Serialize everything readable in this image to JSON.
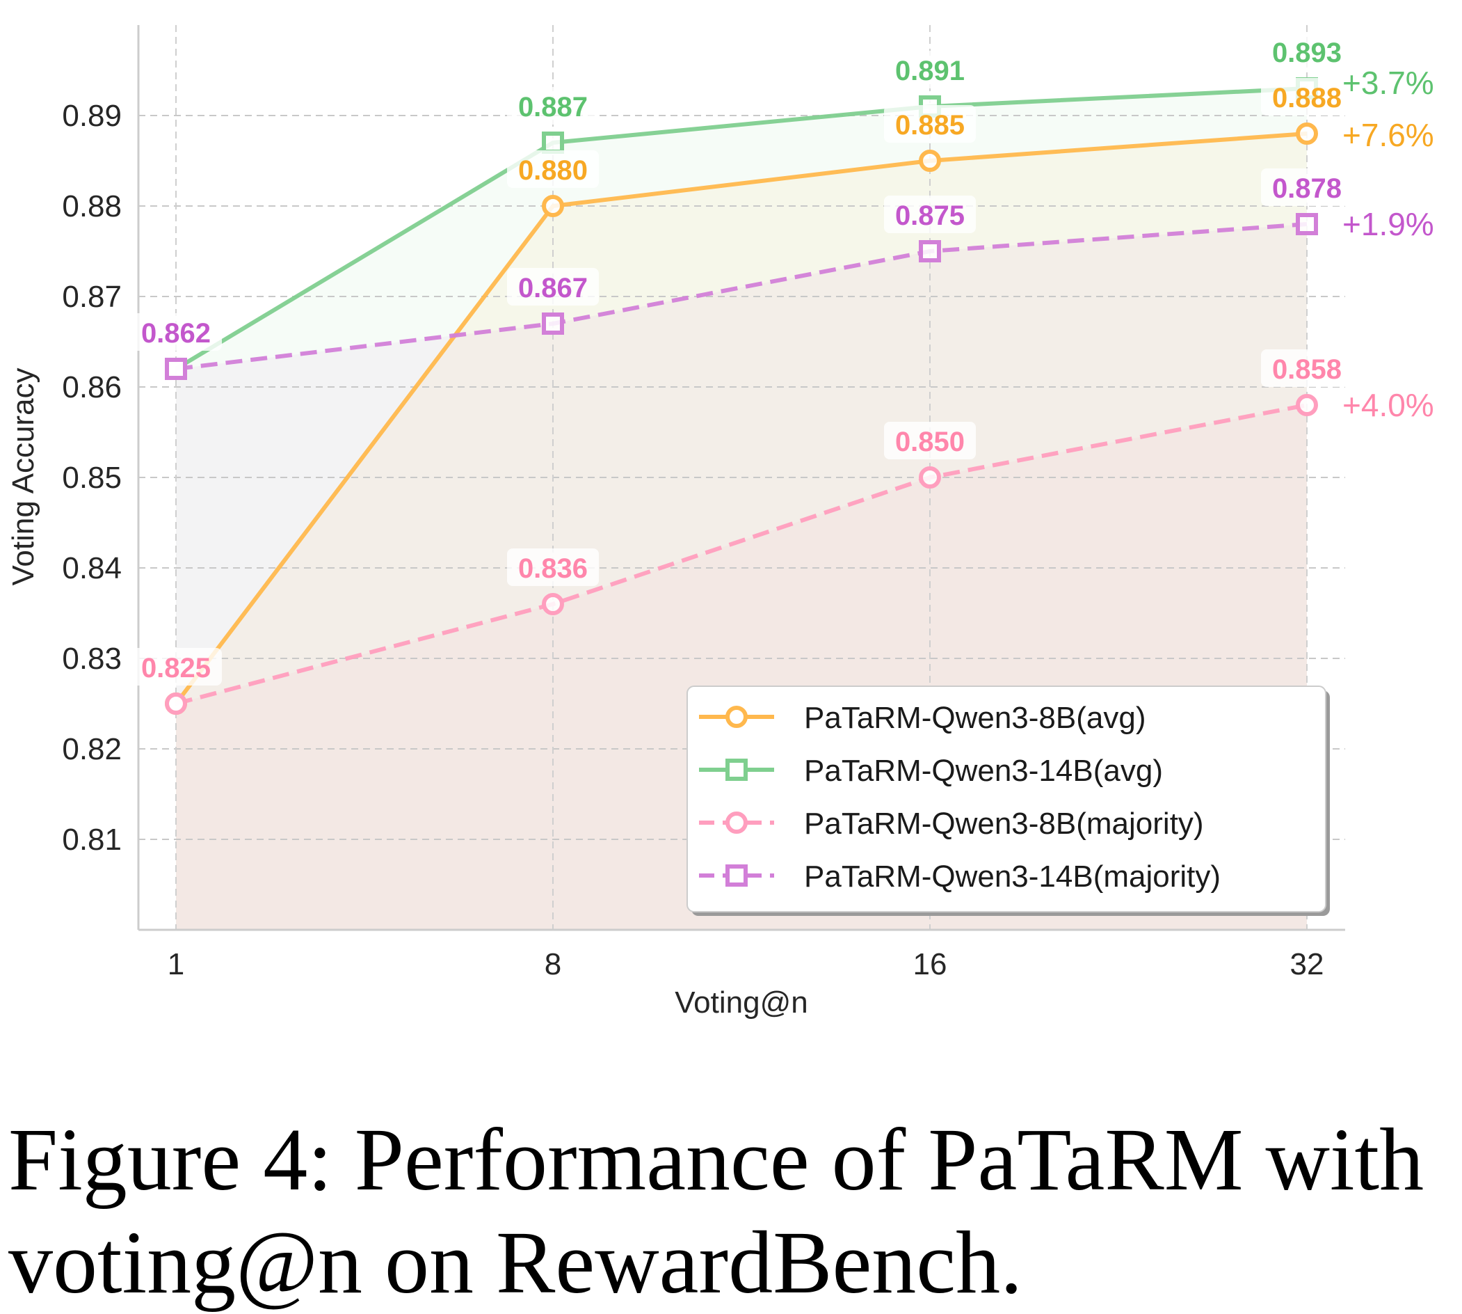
{
  "chart_data": {
    "type": "line",
    "title": "",
    "xlabel": "Voting@n",
    "ylabel": "Voting Accuracy",
    "categories": [
      "1",
      "8",
      "16",
      "32"
    ],
    "ylim": [
      0.8,
      0.9
    ],
    "yticks": [
      "0.81",
      "0.82",
      "0.83",
      "0.84",
      "0.85",
      "0.86",
      "0.87",
      "0.88",
      "0.89"
    ],
    "ytick_values": [
      0.81,
      0.82,
      0.83,
      0.84,
      0.85,
      0.86,
      0.87,
      0.88,
      0.89
    ],
    "grid": true,
    "legend_position": "lower-right",
    "series": [
      {
        "name": "PaTaRM-Qwen3-8B(avg)",
        "values": [
          0.825,
          0.88,
          0.885,
          0.888
        ],
        "labels": [
          "",
          "0.880",
          "0.885",
          "0.888"
        ],
        "gain": "+7.6%",
        "marker": "circle",
        "linestyle": "solid",
        "color": "#ffb84d",
        "label_color": "#f7a823"
      },
      {
        "name": "PaTaRM-Qwen3-14B(avg)",
        "values": [
          0.862,
          0.887,
          0.891,
          0.893
        ],
        "labels": [
          "",
          "0.887",
          "0.891",
          "0.893"
        ],
        "gain": "+3.7%",
        "marker": "square",
        "linestyle": "solid",
        "color": "#7fcf8f",
        "label_color": "#5dc26f"
      },
      {
        "name": "PaTaRM-Qwen3-8B(majority)",
        "values": [
          0.825,
          0.836,
          0.85,
          0.858
        ],
        "labels": [
          "0.825",
          "0.836",
          "0.850",
          "0.858"
        ],
        "gain": "+4.0%",
        "marker": "circle",
        "linestyle": "dashed",
        "color": "#ff9ebe",
        "label_color": "#ff86ab"
      },
      {
        "name": "PaTaRM-Qwen3-14B(majority)",
        "values": [
          0.862,
          0.867,
          0.875,
          0.878
        ],
        "labels": [
          "0.862",
          "0.867",
          "0.875",
          "0.878"
        ],
        "gain": "+1.9%",
        "marker": "square",
        "linestyle": "dashed",
        "color": "#d27fd8",
        "label_color": "#c357cc"
      }
    ]
  },
  "caption": {
    "line1": "Figure 4: Performance of PaTaRM with",
    "line2": "voting@n on RewardBench."
  }
}
